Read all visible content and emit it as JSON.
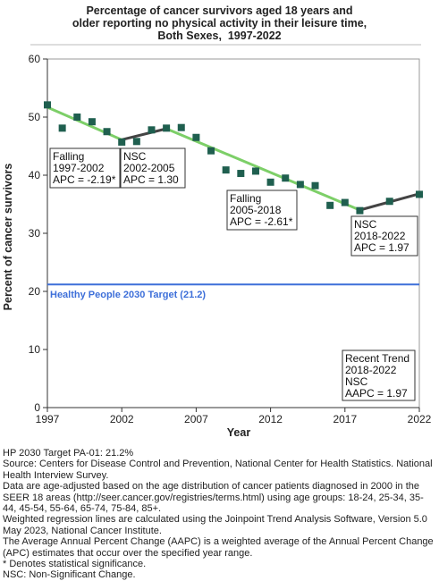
{
  "chart_data": {
    "type": "scatter",
    "title": [
      "Percentage of cancer survivors aged 18 years and",
      "older reporting no physical activity in their leisure time,",
      "Both Sexes,  1997-2022"
    ],
    "xlabel": "Year",
    "ylabel": "Percent of cancer survivors",
    "xlim": [
      1997,
      2022
    ],
    "ylim": [
      0,
      60
    ],
    "xticks": [
      1997,
      2002,
      2007,
      2012,
      2017,
      2022
    ],
    "yticks": [
      0,
      10,
      20,
      30,
      40,
      50,
      60
    ],
    "grid": false,
    "series": [
      {
        "marker": "square",
        "color": "#1f5f4f",
        "x": [
          1997,
          1998,
          1999,
          2000,
          2001,
          2002,
          2003,
          2004,
          2005,
          2006,
          2007,
          2008,
          2009,
          2010,
          2011,
          2012,
          2013,
          2014,
          2015,
          2016,
          2017,
          2018,
          2020,
          2022
        ],
        "y": [
          52.1,
          48.1,
          50.0,
          49.2,
          47.5,
          45.7,
          45.8,
          47.8,
          48.1,
          48.2,
          46.5,
          44.2,
          40.9,
          40.3,
          40.7,
          38.8,
          39.5,
          38.4,
          38.2,
          34.8,
          35.3,
          33.9,
          35.5,
          36.7
        ]
      }
    ],
    "trend_segments": [
      {
        "x": [
          1997,
          2002
        ],
        "y": [
          51.7,
          46.1
        ],
        "color": "#7dcf68"
      },
      {
        "x": [
          2002,
          2005
        ],
        "y": [
          46.1,
          48.0
        ],
        "color": "#444444"
      },
      {
        "x": [
          2005,
          2018
        ],
        "y": [
          48.0,
          34.0
        ],
        "color": "#7dcf68"
      },
      {
        "x": [
          2018,
          2022
        ],
        "y": [
          34.0,
          36.8
        ],
        "color": "#444444"
      }
    ],
    "target_line": {
      "y": 21.2,
      "label": "Healthy People 2030 Target (21.2)",
      "color": "#3d6fd9"
    },
    "annotations": [
      {
        "lines": [
          "Falling",
          "1997-2002",
          "APC = -2.19*"
        ]
      },
      {
        "lines": [
          "NSC",
          "2002-2005",
          "APC =  1.30"
        ]
      },
      {
        "lines": [
          "Falling",
          "2005-2018",
          "APC = -2.61*"
        ]
      },
      {
        "lines": [
          "NSC",
          "2018-2022",
          "APC =  1.97"
        ]
      },
      {
        "lines": [
          "Recent Trend",
          "2018-2022",
          "NSC",
          "AAPC =  1.97"
        ]
      }
    ]
  },
  "footnotes": [
    "HP 2030 Target PA-01: 21.2%",
    "Source: Centers for Disease Control and Prevention, National Center for Health Statistics. National Health Interview Survey.",
    "Data are age-adjusted based on the age distribution of cancer patients diagnosed in 2000 in the SEER 18 areas (http://seer.cancer.gov/registries/terms.html) using age groups: 18-24, 25-34, 35-44, 45-54, 55-64, 65-74, 75-84, 85+.",
    "Weighted regression lines are calculated using the Joinpoint Trend Analysis Software, Version 5.0 May 2023, National Cancer Institute.",
    "The Average Annual Percent Change (AAPC) is a weighted average of the Annual Percent Change (APC) estimates that occur over the specified year range.",
    "* Denotes statistical significance.",
    "NSC: Non-Significant Change."
  ]
}
